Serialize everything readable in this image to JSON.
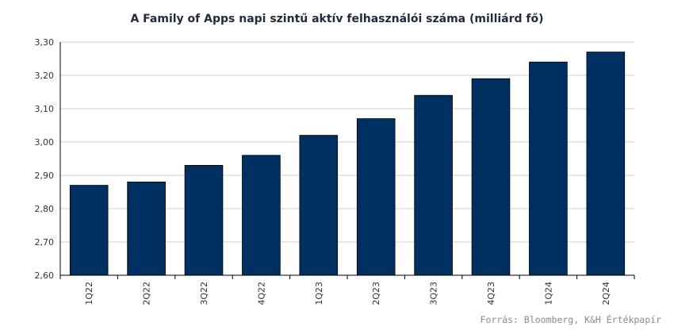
{
  "chart_data": {
    "type": "bar",
    "title": "A Family of Apps napi szintű aktív felhasználói száma (milliárd fő)",
    "categories": [
      "1Q22",
      "2Q22",
      "3Q22",
      "4Q22",
      "1Q23",
      "2Q23",
      "3Q23",
      "4Q23",
      "1Q24",
      "2Q24"
    ],
    "values": [
      2.87,
      2.88,
      2.93,
      2.96,
      3.02,
      3.07,
      3.14,
      3.19,
      3.24,
      3.27
    ],
    "ylim": [
      2.6,
      3.3
    ],
    "yticks": [
      "2,60",
      "2,70",
      "2,80",
      "2,90",
      "3,00",
      "3,10",
      "3,20",
      "3,30"
    ],
    "xlabel": "",
    "ylabel": "",
    "grid": true,
    "bar_color": "#002f62",
    "grid_color": "#d0d0d0",
    "source": "Forrás: Bloomberg, K&H Értékpapír"
  }
}
